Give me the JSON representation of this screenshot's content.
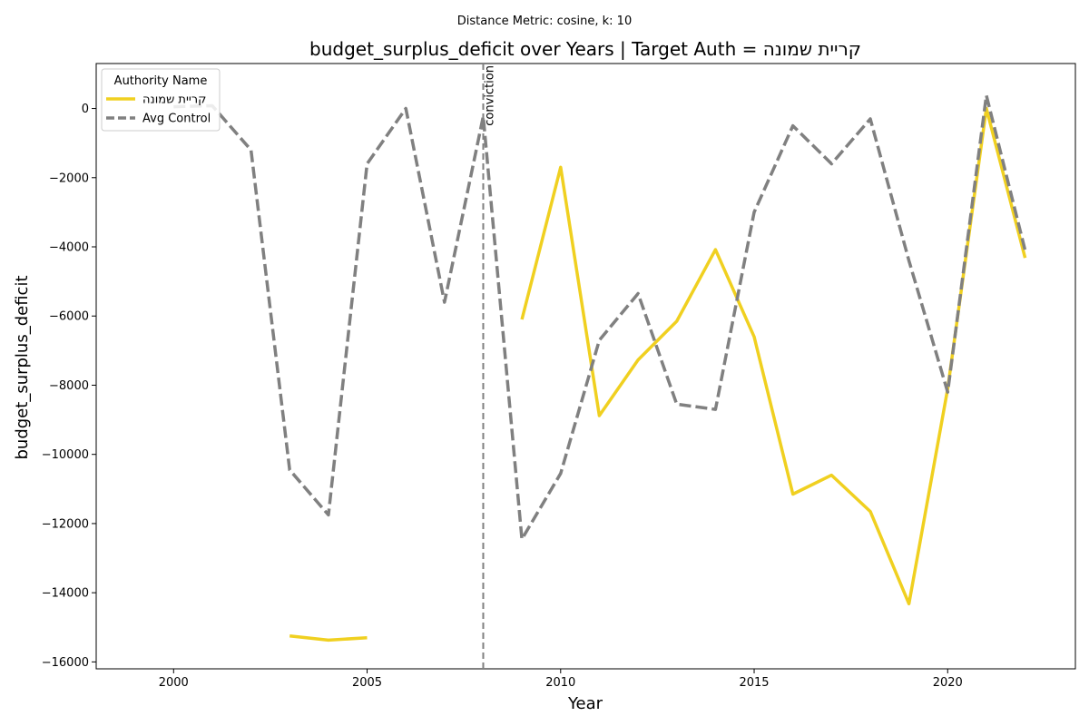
{
  "chart_data": {
    "type": "line",
    "suptitle": "Distance Metric: cosine, k: 10",
    "title": "budget_surplus_deficit over Years | Target Auth = קריית שמונה",
    "xlabel": "Year",
    "ylabel": "budget_surplus_deficit",
    "xlim": [
      1998,
      2023.3
    ],
    "ylim": [
      -16200,
      1300
    ],
    "x_ticks": [
      2000,
      2005,
      2010,
      2015,
      2020
    ],
    "y_ticks": [
      0,
      -2000,
      -4000,
      -6000,
      -8000,
      -10000,
      -12000,
      -14000,
      -16000
    ],
    "legend": {
      "title": "Authority Name",
      "placement": "upper left"
    },
    "annotations": [
      {
        "label": "conviction",
        "x": 2008
      }
    ],
    "series": [
      {
        "name": "קריית שמונה",
        "color": "#f0d020",
        "style": "solid",
        "points": [
          [
            2003,
            -15250
          ],
          [
            2004,
            -15370
          ],
          [
            2005,
            -15300
          ],
          [
            2009,
            -6100
          ],
          [
            2010,
            -1700
          ],
          [
            2011,
            -8880
          ],
          [
            2012,
            -7270
          ],
          [
            2013,
            -6150
          ],
          [
            2014,
            -4080
          ],
          [
            2015,
            -6600
          ],
          [
            2016,
            -11150
          ],
          [
            2017,
            -10600
          ],
          [
            2018,
            -11650
          ],
          [
            2019,
            -14320
          ],
          [
            2020,
            -8100
          ],
          [
            2021,
            0
          ],
          [
            2022,
            -4320
          ]
        ],
        "segments": [
          [
            0,
            2
          ],
          [
            3,
            16
          ]
        ]
      },
      {
        "name": "Avg Control",
        "color": "#808080",
        "style": "dashed",
        "points": [
          [
            2000,
            50
          ],
          [
            2001,
            80
          ],
          [
            2002,
            -1200
          ],
          [
            2003,
            -10450
          ],
          [
            2004,
            -11750
          ],
          [
            2005,
            -1600
          ],
          [
            2006,
            0
          ],
          [
            2007,
            -5600
          ],
          [
            2008,
            -230
          ],
          [
            2009,
            -12450
          ],
          [
            2010,
            -10550
          ],
          [
            2011,
            -6700
          ],
          [
            2012,
            -5350
          ],
          [
            2013,
            -8550
          ],
          [
            2014,
            -8700
          ],
          [
            2015,
            -3000
          ],
          [
            2016,
            -500
          ],
          [
            2017,
            -1600
          ],
          [
            2018,
            -300
          ],
          [
            2019,
            -4400
          ],
          [
            2020,
            -8200
          ],
          [
            2021,
            380
          ],
          [
            2022,
            -4100
          ]
        ],
        "segments": [
          [
            0,
            22
          ]
        ]
      }
    ]
  }
}
